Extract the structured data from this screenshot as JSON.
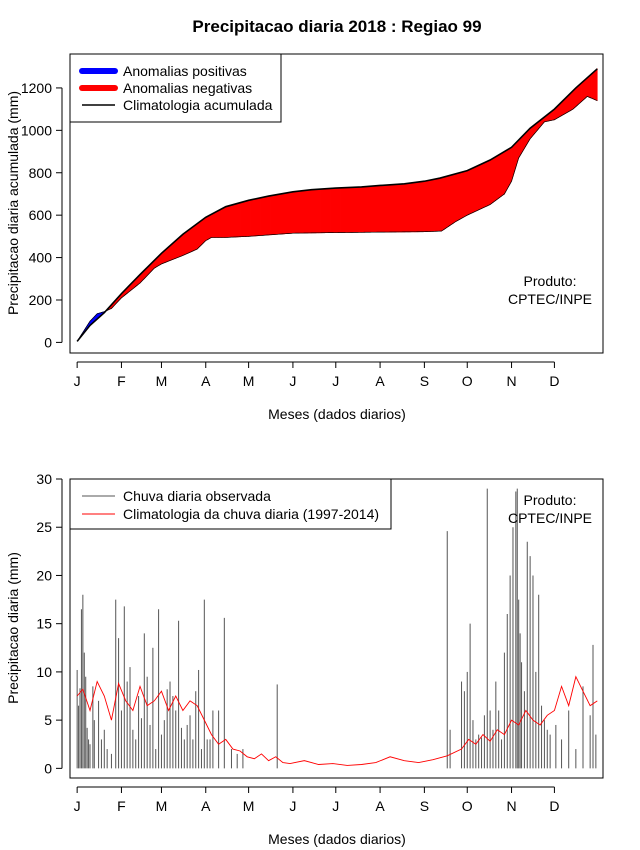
{
  "title": "Precipitacao diaria 2018 : Regiao 99",
  "chart_data": [
    {
      "type": "area",
      "xlabel": "Meses (dados diarios)",
      "ylabel": "Precipitacao diaria acumulada (mm)",
      "xlim": [
        -4,
        369
      ],
      "ylim": [
        -50,
        1360
      ],
      "yticks": [
        0,
        200,
        400,
        600,
        800,
        1000,
        1200
      ],
      "month_labels": [
        "J",
        "F",
        "M",
        "A",
        "M",
        "J",
        "J",
        "A",
        "S",
        "O",
        "N",
        "D"
      ],
      "month_days": [
        1,
        32,
        60,
        91,
        121,
        152,
        182,
        213,
        244,
        274,
        305,
        335
      ],
      "legend": {
        "position": "top-left",
        "items": [
          {
            "label": "Anomalias positivas",
            "color": "#0000ff"
          },
          {
            "label": "Anomalias negativas",
            "color": "#ff0000"
          },
          {
            "label": "Climatologia acumulada",
            "color": "#000000"
          }
        ]
      },
      "annotation": [
        "Produto:",
        "CPTEC/INPE"
      ],
      "climatology_cumulative": {
        "days": [
          1,
          10,
          20,
          32,
          45,
          60,
          75,
          91,
          105,
          121,
          135,
          152,
          165,
          182,
          200,
          213,
          230,
          244,
          255,
          274,
          290,
          305,
          318,
          335,
          350,
          365
        ],
        "values": [
          5,
          80,
          140,
          230,
          320,
          420,
          510,
          590,
          640,
          670,
          690,
          710,
          720,
          728,
          733,
          740,
          748,
          760,
          775,
          810,
          860,
          920,
          1010,
          1100,
          1200,
          1290
        ]
      },
      "observed_cumulative": {
        "days": [
          1,
          10,
          15,
          20,
          25,
          32,
          45,
          55,
          60,
          75,
          85,
          91,
          95,
          105,
          121,
          152,
          182,
          213,
          244,
          256,
          266,
          274,
          290,
          300,
          305,
          310,
          318,
          328,
          335,
          348,
          358,
          365
        ],
        "values": [
          5,
          100,
          135,
          145,
          160,
          210,
          280,
          350,
          370,
          410,
          440,
          480,
          495,
          495,
          500,
          515,
          518,
          520,
          522,
          525,
          570,
          600,
          650,
          700,
          760,
          870,
          960,
          1040,
          1050,
          1100,
          1160,
          1140
        ]
      },
      "fill": {
        "positive": "#0000ff",
        "negative": "#ff0000"
      }
    },
    {
      "type": "line",
      "xlabel": "Meses (dados diarios)",
      "ylabel": "Precipitacao diaria (mm)",
      "xlim": [
        -4,
        369
      ],
      "ylim": [
        -1,
        30
      ],
      "yticks": [
        0,
        5,
        10,
        15,
        20,
        25,
        30
      ],
      "month_labels": [
        "J",
        "F",
        "M",
        "A",
        "M",
        "J",
        "J",
        "A",
        "S",
        "O",
        "N",
        "D"
      ],
      "month_days": [
        1,
        32,
        60,
        91,
        121,
        152,
        182,
        213,
        244,
        274,
        305,
        335
      ],
      "legend": {
        "position": "top-left",
        "items": [
          {
            "label": "Chuva diaria observada",
            "color": "#555555"
          },
          {
            "label": "Climatologia da chuva diaria (1997-2014)",
            "color": "#ff0000"
          }
        ]
      },
      "annotation": [
        "Produto:",
        "CPTEC/INPE"
      ],
      "series": [
        {
          "name": "Chuva diaria observada",
          "color": "#555555",
          "style": "vertical-bars",
          "days": [
            1,
            2,
            3,
            4,
            5,
            6,
            7,
            8,
            9,
            10,
            12,
            13,
            16,
            18,
            20,
            22,
            25,
            28,
            30,
            32,
            34,
            36,
            38,
            40,
            42,
            44,
            46,
            48,
            50,
            52,
            54,
            56,
            58,
            60,
            62,
            64,
            66,
            68,
            70,
            72,
            74,
            76,
            78,
            80,
            82,
            84,
            86,
            88,
            90,
            92,
            94,
            96,
            100,
            104,
            109,
            113,
            117,
            141,
            260,
            262,
            270,
            272,
            274,
            276,
            278,
            280,
            282,
            284,
            286,
            288,
            290,
            292,
            294,
            296,
            298,
            300,
            302,
            304,
            306,
            308,
            309,
            310,
            311,
            312,
            314,
            316,
            318,
            320,
            322,
            324,
            326,
            328,
            330,
            332,
            336,
            340,
            345,
            350,
            355,
            360,
            362,
            364
          ],
          "values": [
            10.2,
            6.5,
            8.3,
            16.5,
            18.0,
            12.0,
            9.5,
            4.2,
            3.0,
            2.5,
            8.5,
            5.0,
            7.0,
            3.0,
            4.0,
            2.0,
            1.5,
            17.5,
            13.5,
            6.0,
            16.8,
            9.0,
            10.5,
            4.0,
            3.0,
            7.5,
            5.2,
            14.0,
            9.5,
            4.5,
            12.5,
            2.0,
            16.5,
            3.5,
            5.0,
            8.2,
            9.0,
            7.5,
            6.0,
            15.3,
            4.2,
            3.0,
            4.5,
            5.5,
            3.0,
            8.0,
            10.2,
            2.0,
            17.5,
            3.0,
            3.0,
            6.0,
            6.0,
            15.6,
            2.0,
            1.5,
            2.0,
            8.7,
            24.6,
            4.0,
            9.0,
            8.0,
            10.0,
            15.0,
            5.0,
            3.0,
            3.5,
            3.2,
            5.5,
            29.0,
            6.0,
            4.0,
            9.0,
            6.0,
            3.0,
            12.0,
            16.0,
            20.0,
            25.0,
            28.7,
            29.0,
            17.5,
            14.0,
            11.0,
            8.0,
            23.5,
            22.0,
            20.0,
            10.0,
            18.0,
            6.5,
            5.0,
            4.0,
            3.5,
            4.5,
            3.0,
            6.0,
            2.0,
            8.5,
            5.5,
            12.8,
            3.5
          ]
        },
        {
          "name": "Climatologia da chuva diaria (1997-2014)",
          "color": "#ff0000",
          "style": "line",
          "days": [
            1,
            5,
            10,
            15,
            20,
            25,
            30,
            35,
            40,
            45,
            50,
            55,
            60,
            65,
            70,
            75,
            80,
            85,
            90,
            95,
            100,
            105,
            110,
            115,
            120,
            125,
            130,
            135,
            140,
            145,
            150,
            160,
            170,
            180,
            190,
            200,
            210,
            220,
            230,
            240,
            250,
            260,
            270,
            275,
            280,
            285,
            290,
            295,
            300,
            305,
            310,
            315,
            320,
            325,
            330,
            335,
            340,
            345,
            350,
            355,
            360,
            365
          ],
          "values": [
            7.5,
            8.2,
            6.0,
            9.0,
            7.5,
            5.0,
            8.8,
            7.0,
            6.0,
            8.5,
            6.5,
            7.0,
            8.0,
            6.0,
            7.5,
            6.0,
            7.0,
            6.5,
            5.0,
            3.5,
            2.5,
            3.0,
            2.0,
            1.8,
            1.2,
            1.0,
            1.5,
            0.8,
            1.2,
            0.6,
            0.5,
            0.8,
            0.4,
            0.5,
            0.3,
            0.4,
            0.6,
            1.2,
            0.8,
            0.6,
            0.9,
            1.3,
            2.0,
            3.0,
            2.5,
            3.5,
            2.8,
            4.0,
            3.5,
            5.0,
            4.5,
            6.0,
            5.0,
            4.5,
            5.5,
            6.0,
            8.5,
            6.5,
            9.5,
            8.0,
            6.5,
            7.0
          ]
        }
      ]
    }
  ]
}
